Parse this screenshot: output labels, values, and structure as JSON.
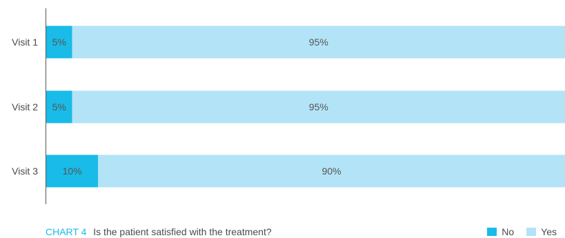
{
  "chart_data": {
    "type": "bar",
    "orientation": "horizontal",
    "stacked": true,
    "categories": [
      "Visit 1",
      "Visit 2",
      "Visit 3"
    ],
    "series": [
      {
        "name": "No",
        "values": [
          5,
          5,
          10
        ],
        "labels": [
          "5%",
          "5%",
          "10%"
        ],
        "color": "#19bbe8"
      },
      {
        "name": "Yes",
        "values": [
          95,
          95,
          90
        ],
        "labels": [
          "95%",
          "95%",
          "90%"
        ],
        "color": "#b3e3f7"
      }
    ],
    "xlim": [
      0,
      100
    ],
    "title": "Is the patient satisfied with the treatment?",
    "title_prefix": "CHART 4",
    "legend": "bottom-right",
    "grid": false
  }
}
